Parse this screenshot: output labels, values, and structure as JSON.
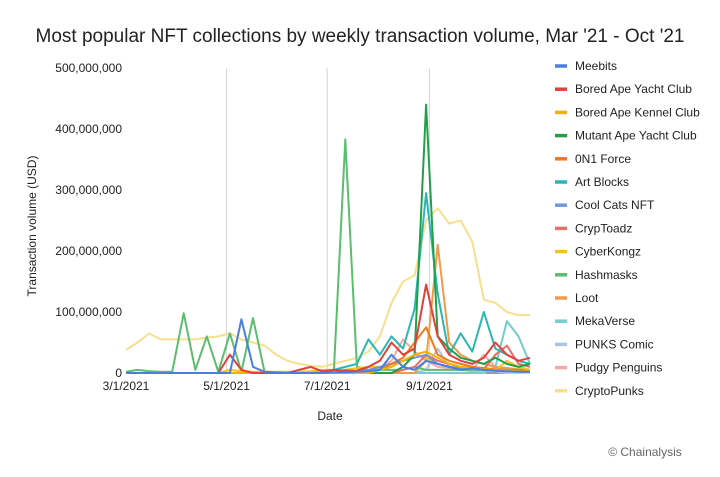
{
  "chart_data": {
    "type": "line",
    "title": "Most popular NFT collections by weekly transaction volume, Mar '21 - Oct '21",
    "xlabel": "Date",
    "ylabel": "Transaction volume (USD)",
    "ylim": [
      0,
      500000000
    ],
    "yticks": [
      "0",
      "100,000,000",
      "200,000,000",
      "300,000,000",
      "400,000,000",
      "500,000,000"
    ],
    "xticks": [
      "3/1/2021",
      "5/1/2021",
      "7/1/2021",
      "9/1/2021"
    ],
    "legend_position": "right",
    "grid": "vertical",
    "x": [
      "2021-03-01",
      "2021-03-08",
      "2021-03-15",
      "2021-03-22",
      "2021-03-29",
      "2021-04-05",
      "2021-04-12",
      "2021-04-19",
      "2021-04-26",
      "2021-05-03",
      "2021-05-10",
      "2021-05-17",
      "2021-05-24",
      "2021-05-31",
      "2021-06-07",
      "2021-06-14",
      "2021-06-21",
      "2021-06-28",
      "2021-07-05",
      "2021-07-12",
      "2021-07-19",
      "2021-07-26",
      "2021-08-02",
      "2021-08-09",
      "2021-08-16",
      "2021-08-23",
      "2021-08-30",
      "2021-09-06",
      "2021-09-13",
      "2021-09-20",
      "2021-09-27",
      "2021-10-04",
      "2021-10-11",
      "2021-10-18",
      "2021-10-25",
      "2021-11-01"
    ],
    "series": [
      {
        "name": "Meebits",
        "color": "#4a7fe0",
        "values": [
          0,
          0,
          0,
          0,
          0,
          0,
          0,
          0,
          0,
          0,
          88000000,
          10000000,
          2000000,
          1000000,
          0,
          0,
          0,
          0,
          1000000,
          1000000,
          2000000,
          3000000,
          5000000,
          30000000,
          10000000,
          5000000,
          20000000,
          15000000,
          10000000,
          5000000,
          8000000,
          5000000,
          4000000,
          3000000,
          2000000,
          2000000
        ]
      },
      {
        "name": "Bored Ape Yacht Club",
        "color": "#e0413a",
        "values": [
          0,
          0,
          0,
          0,
          0,
          0,
          0,
          0,
          0,
          30000000,
          5000000,
          0,
          0,
          0,
          0,
          5000000,
          10000000,
          3000000,
          5000000,
          3000000,
          4000000,
          10000000,
          20000000,
          50000000,
          30000000,
          40000000,
          145000000,
          60000000,
          30000000,
          20000000,
          15000000,
          25000000,
          50000000,
          30000000,
          20000000,
          25000000
        ]
      },
      {
        "name": "Bored Ape Kennel Club",
        "color": "#f0b400",
        "values": [
          0,
          0,
          0,
          0,
          0,
          0,
          0,
          0,
          0,
          0,
          0,
          0,
          0,
          0,
          0,
          0,
          0,
          0,
          0,
          0,
          0,
          0,
          5000000,
          10000000,
          20000000,
          30000000,
          35000000,
          25000000,
          15000000,
          10000000,
          8000000,
          6000000,
          5000000,
          4000000,
          3000000,
          3000000
        ]
      },
      {
        "name": "Mutant Ape Yacht Club",
        "color": "#21a047",
        "values": [
          0,
          0,
          0,
          0,
          0,
          0,
          0,
          0,
          0,
          0,
          0,
          0,
          0,
          0,
          0,
          0,
          0,
          0,
          0,
          0,
          0,
          0,
          0,
          0,
          10000000,
          30000000,
          440000000,
          60000000,
          40000000,
          25000000,
          20000000,
          15000000,
          25000000,
          15000000,
          10000000,
          15000000
        ]
      },
      {
        "name": "0N1 Force",
        "color": "#f07a1a",
        "values": [
          0,
          0,
          0,
          0,
          0,
          0,
          0,
          0,
          0,
          0,
          0,
          0,
          0,
          0,
          0,
          0,
          0,
          0,
          0,
          0,
          0,
          0,
          5000000,
          15000000,
          25000000,
          50000000,
          75000000,
          30000000,
          20000000,
          15000000,
          10000000,
          8000000,
          6000000,
          5000000,
          4000000,
          3000000
        ]
      },
      {
        "name": "Art Blocks",
        "color": "#2bb6b6",
        "values": [
          0,
          0,
          0,
          0,
          0,
          0,
          0,
          0,
          0,
          0,
          0,
          0,
          0,
          0,
          0,
          0,
          0,
          0,
          5000000,
          10000000,
          15000000,
          55000000,
          30000000,
          60000000,
          40000000,
          105000000,
          295000000,
          130000000,
          30000000,
          65000000,
          35000000,
          100000000,
          40000000,
          30000000,
          20000000,
          15000000
        ]
      },
      {
        "name": "Cool Cats NFT",
        "color": "#6f97e0",
        "values": [
          0,
          0,
          0,
          0,
          0,
          0,
          0,
          0,
          0,
          0,
          0,
          0,
          0,
          0,
          0,
          0,
          0,
          0,
          0,
          5000000,
          3000000,
          5000000,
          10000000,
          15000000,
          20000000,
          25000000,
          30000000,
          15000000,
          10000000,
          8000000,
          6000000,
          5000000,
          4000000,
          3000000,
          2000000,
          2000000
        ]
      },
      {
        "name": "CrypToadz",
        "color": "#ef6b6b",
        "values": [
          0,
          0,
          0,
          0,
          0,
          0,
          0,
          0,
          0,
          0,
          0,
          0,
          0,
          0,
          0,
          0,
          0,
          0,
          0,
          0,
          0,
          0,
          0,
          0,
          5000000,
          10000000,
          30000000,
          20000000,
          15000000,
          10000000,
          8000000,
          6000000,
          30000000,
          45000000,
          15000000,
          10000000
        ]
      },
      {
        "name": "CyberKongz",
        "color": "#f2c21a",
        "values": [
          0,
          0,
          0,
          0,
          0,
          0,
          0,
          0,
          0,
          5000000,
          3000000,
          2000000,
          2000000,
          2000000,
          2000000,
          2000000,
          3000000,
          5000000,
          5000000,
          5000000,
          8000000,
          10000000,
          10000000,
          15000000,
          20000000,
          30000000,
          25000000,
          15000000,
          10000000,
          8000000,
          6000000,
          5000000,
          4000000,
          20000000,
          10000000,
          5000000
        ]
      },
      {
        "name": "Hashmasks",
        "color": "#5bbd6e",
        "values": [
          2000000,
          5000000,
          3000000,
          2000000,
          2000000,
          98000000,
          5000000,
          60000000,
          2000000,
          65000000,
          2000000,
          90000000,
          2000000,
          1000000,
          1000000,
          1000000,
          1000000,
          1000000,
          1000000,
          383000000,
          10000000,
          5000000,
          5000000,
          5000000,
          5000000,
          10000000,
          5000000,
          5000000,
          5000000,
          5000000,
          5000000,
          5000000,
          5000000,
          5000000,
          5000000,
          5000000
        ]
      },
      {
        "name": "Loot",
        "color": "#f39a4a",
        "values": [
          0,
          0,
          0,
          0,
          0,
          0,
          0,
          0,
          0,
          0,
          0,
          0,
          0,
          0,
          0,
          0,
          0,
          0,
          0,
          0,
          0,
          0,
          0,
          0,
          0,
          0,
          20000000,
          210000000,
          50000000,
          30000000,
          20000000,
          15000000,
          10000000,
          8000000,
          6000000,
          5000000
        ]
      },
      {
        "name": "MekaVerse",
        "color": "#73cdcd",
        "values": [
          0,
          0,
          0,
          0,
          0,
          0,
          0,
          0,
          0,
          0,
          0,
          0,
          0,
          0,
          0,
          0,
          0,
          0,
          0,
          0,
          0,
          0,
          0,
          0,
          0,
          0,
          0,
          0,
          0,
          0,
          0,
          0,
          10000000,
          85000000,
          60000000,
          15000000
        ]
      },
      {
        "name": "PUNKS Comic",
        "color": "#a9c4ef",
        "values": [
          0,
          0,
          0,
          0,
          0,
          0,
          0,
          0,
          0,
          0,
          0,
          0,
          0,
          0,
          0,
          0,
          0,
          0,
          0,
          0,
          0,
          0,
          0,
          0,
          0,
          0,
          5000000,
          40000000,
          10000000,
          5000000,
          3000000,
          2000000,
          2000000,
          1000000,
          1000000,
          1000000
        ]
      },
      {
        "name": "Pudgy Penguins",
        "color": "#f4a9a9",
        "values": [
          0,
          0,
          0,
          0,
          0,
          0,
          0,
          0,
          0,
          0,
          0,
          0,
          0,
          0,
          0,
          0,
          0,
          0,
          0,
          0,
          0,
          5000000,
          8000000,
          20000000,
          55000000,
          35000000,
          20000000,
          10000000,
          8000000,
          6000000,
          5000000,
          30000000,
          10000000,
          8000000,
          6000000,
          5000000
        ]
      },
      {
        "name": "CryptoPunks",
        "color": "#f7df90",
        "values": [
          38000000,
          50000000,
          65000000,
          55000000,
          55000000,
          55000000,
          55000000,
          58000000,
          60000000,
          65000000,
          55000000,
          50000000,
          45000000,
          30000000,
          20000000,
          15000000,
          12000000,
          10000000,
          15000000,
          20000000,
          25000000,
          35000000,
          60000000,
          115000000,
          150000000,
          160000000,
          250000000,
          270000000,
          245000000,
          250000000,
          215000000,
          120000000,
          115000000,
          100000000,
          95000000,
          95000000
        ]
      }
    ]
  },
  "footer": {
    "credit": "© Chainalysis"
  }
}
